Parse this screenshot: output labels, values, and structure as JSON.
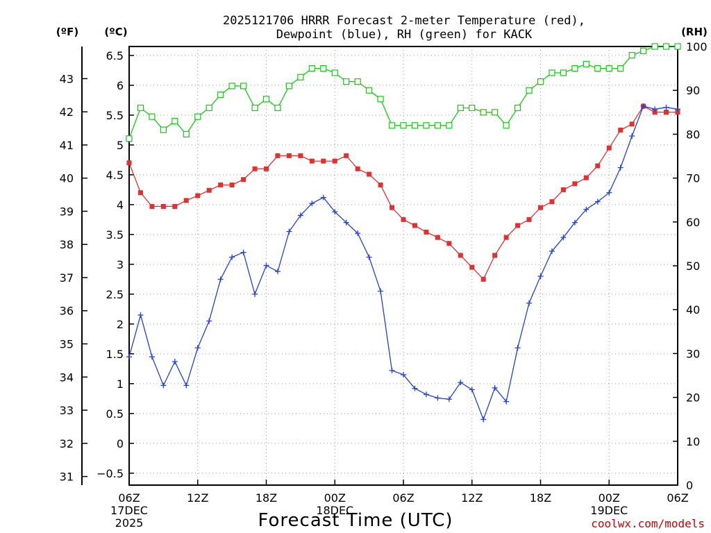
{
  "chart_data": {
    "type": "line",
    "title_lines": [
      "2025121706 HRRR Forecast 2-meter Temperature (red),",
      "Dewpoint (blue), RH (green) for KACK"
    ],
    "xlabel": "Forecast Time (UTC)",
    "credit": "coolwx.com/models",
    "units": {
      "fahrenheit": "(ºF)",
      "celsius": "(ºC)",
      "rh": "(RH)"
    },
    "x_range_hours": [
      0,
      48
    ],
    "celsius_axis": {
      "range": [
        -0.7,
        6.65
      ],
      "ticks": [
        "−0.5",
        "0",
        "0.5",
        "1",
        "1.5",
        "2",
        "2.5",
        "3",
        "3.5",
        "4",
        "4.5",
        "5",
        "5.5",
        "6",
        "6.5"
      ],
      "tick_values": [
        -0.5,
        0,
        0.5,
        1,
        1.5,
        2,
        2.5,
        3,
        3.5,
        4,
        4.5,
        5,
        5.5,
        6,
        6.5
      ]
    },
    "fahrenheit_axis": {
      "ticks": [
        "31",
        "32",
        "33",
        "34",
        "35",
        "36",
        "37",
        "38",
        "39",
        "40",
        "41",
        "42",
        "43"
      ],
      "tick_values": [
        31,
        32,
        33,
        34,
        35,
        36,
        37,
        38,
        39,
        40,
        41,
        42,
        43
      ]
    },
    "rh_axis": {
      "range": [
        0,
        100
      ],
      "ticks": [
        "0",
        "10",
        "20",
        "30",
        "40",
        "50",
        "60",
        "70",
        "80",
        "90",
        "100"
      ],
      "tick_values": [
        0,
        10,
        20,
        30,
        40,
        50,
        60,
        70,
        80,
        90,
        100
      ]
    },
    "x_ticks": [
      {
        "hour": 0,
        "lines": [
          "06Z",
          "17DEC",
          "2025"
        ]
      },
      {
        "hour": 6,
        "lines": [
          "12Z"
        ]
      },
      {
        "hour": 12,
        "lines": [
          "18Z"
        ]
      },
      {
        "hour": 18,
        "lines": [
          "00Z",
          "18DEC"
        ]
      },
      {
        "hour": 24,
        "lines": [
          "06Z"
        ]
      },
      {
        "hour": 30,
        "lines": [
          "12Z"
        ]
      },
      {
        "hour": 36,
        "lines": [
          "18Z"
        ]
      },
      {
        "hour": 42,
        "lines": [
          "00Z",
          "19DEC"
        ]
      },
      {
        "hour": 48,
        "lines": [
          "06Z"
        ]
      }
    ],
    "series": [
      {
        "name": "Temperature",
        "color": "#e03030",
        "axis": "celsius",
        "values": [
          4.7,
          4.2,
          3.97,
          3.97,
          3.97,
          4.07,
          4.15,
          4.24,
          4.33,
          4.33,
          4.42,
          4.6,
          4.6,
          4.82,
          4.82,
          4.82,
          4.73,
          4.73,
          4.73,
          4.82,
          4.6,
          4.51,
          4.33,
          3.95,
          3.75,
          3.65,
          3.54,
          3.45,
          3.35,
          3.15,
          2.95,
          2.75,
          3.15,
          3.45,
          3.65,
          3.75,
          3.95,
          4.05,
          4.25,
          4.35,
          4.45,
          4.65,
          4.95,
          5.25,
          5.35,
          5.65,
          5.55,
          5.55,
          5.55
        ]
      },
      {
        "name": "Dewpoint",
        "color": "#2040e0",
        "axis": "celsius",
        "values": [
          1.45,
          2.15,
          1.45,
          0.97,
          1.37,
          0.97,
          1.6,
          2.05,
          2.75,
          3.12,
          3.2,
          2.5,
          2.98,
          2.88,
          3.55,
          3.82,
          4.02,
          4.12,
          3.88,
          3.7,
          3.52,
          3.12,
          2.55,
          1.22,
          1.15,
          0.92,
          0.82,
          0.76,
          0.74,
          1.02,
          0.9,
          0.4,
          0.93,
          0.7,
          1.6,
          2.35,
          2.8,
          3.22,
          3.45,
          3.7,
          3.92,
          4.05,
          4.2,
          4.62,
          5.15,
          5.65,
          5.6,
          5.63,
          5.6
        ]
      },
      {
        "name": "RH",
        "color": "#10cc10",
        "axis": "rh",
        "values": [
          79,
          86,
          84,
          81,
          83,
          80,
          84,
          86,
          89,
          91,
          91,
          86,
          88,
          86,
          91,
          93,
          95,
          95,
          94,
          92,
          92,
          90,
          88,
          82,
          82,
          82,
          82,
          82,
          82,
          86,
          86,
          85,
          85,
          82,
          86,
          90,
          92,
          94,
          94,
          95,
          96,
          95,
          95,
          95,
          98,
          99,
          100,
          100,
          100
        ]
      }
    ]
  }
}
